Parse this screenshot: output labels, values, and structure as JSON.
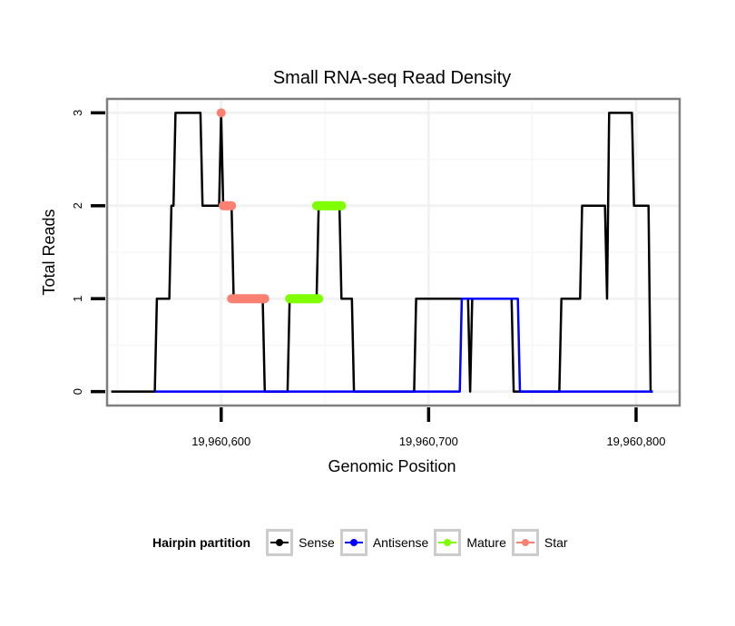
{
  "chart_data": {
    "type": "line",
    "title": "Small RNA-seq Read Density",
    "xlabel": "Genomic Position",
    "ylabel": "Total Reads",
    "xlim": [
      19960545,
      19960821
    ],
    "ylim": [
      -0.15,
      3.15
    ],
    "x_ticks": [
      19960600,
      19960700,
      19960800
    ],
    "x_tick_labels": [
      "19,960,600",
      "19,960,700",
      "19,960,800"
    ],
    "y_ticks": [
      0,
      1,
      2,
      3
    ],
    "y_tick_labels": [
      "0",
      "1",
      "2",
      "3"
    ],
    "grid": true,
    "legend": {
      "title": "Hairpin partition",
      "placement": "bottom",
      "entries": [
        "Sense",
        "Antisense",
        "Mature",
        "Star"
      ]
    },
    "series": [
      {
        "name": "Sense",
        "color": "#000000",
        "kind": "line",
        "points": [
          [
            19960547,
            0
          ],
          [
            19960568,
            0
          ],
          [
            19960569,
            1
          ],
          [
            19960575,
            1
          ],
          [
            19960576,
            2
          ],
          [
            19960577,
            2
          ],
          [
            19960578,
            3
          ],
          [
            19960590,
            3
          ],
          [
            19960591,
            2
          ],
          [
            19960599,
            2
          ],
          [
            19960600,
            3
          ],
          [
            19960601,
            2
          ],
          [
            19960605,
            2
          ],
          [
            19960606,
            1
          ],
          [
            19960620,
            1
          ],
          [
            19960621,
            0
          ],
          [
            19960632,
            0
          ],
          [
            19960633,
            1
          ],
          [
            19960646,
            1
          ],
          [
            19960647,
            2
          ],
          [
            19960657,
            2
          ],
          [
            19960658,
            1
          ],
          [
            19960663,
            1
          ],
          [
            19960664,
            0
          ],
          [
            19960693,
            0
          ],
          [
            19960694,
            1
          ],
          [
            19960719,
            1
          ],
          [
            19960720,
            0
          ],
          [
            19960721,
            1
          ],
          [
            19960740,
            1
          ],
          [
            19960741,
            0
          ],
          [
            19960763,
            0
          ],
          [
            19960764,
            1
          ],
          [
            19960773,
            1
          ],
          [
            19960774,
            2
          ],
          [
            19960785,
            2
          ],
          [
            19960786,
            1
          ],
          [
            19960787,
            3
          ],
          [
            19960798,
            3
          ],
          [
            19960799,
            2
          ],
          [
            19960806,
            2
          ],
          [
            19960807,
            0
          ],
          [
            19960808,
            0
          ]
        ]
      },
      {
        "name": "Antisense",
        "color": "#0000ff",
        "kind": "line",
        "points": [
          [
            19960568,
            0
          ],
          [
            19960715,
            0
          ],
          [
            19960716,
            1
          ],
          [
            19960743,
            1
          ],
          [
            19960744,
            0
          ],
          [
            19960808,
            0
          ]
        ]
      },
      {
        "name": "Mature",
        "color": "#7fff00",
        "kind": "points",
        "segments": [
          {
            "y": 1,
            "from": 19960633,
            "to": 19960647
          },
          {
            "y": 2,
            "from": 19960646,
            "to": 19960658
          }
        ]
      },
      {
        "name": "Star",
        "color": "#fa8072",
        "kind": "points",
        "segments": [
          {
            "y": 3,
            "from": 19960600,
            "to": 19960600
          },
          {
            "y": 2,
            "from": 19960601,
            "to": 19960605
          },
          {
            "y": 1,
            "from": 19960605,
            "to": 19960621
          }
        ]
      }
    ]
  }
}
